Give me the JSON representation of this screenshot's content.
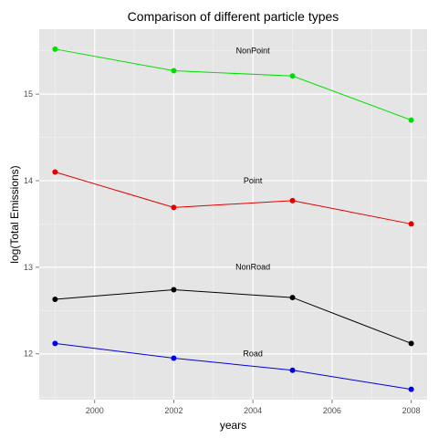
{
  "chart_data": {
    "type": "line",
    "title": "Comparison of different particle types",
    "xlabel": "years",
    "ylabel": "log(Total Emissions)",
    "x": [
      1999,
      2002,
      2005,
      2008
    ],
    "xlim": [
      1998.6,
      2008.4
    ],
    "ylim": [
      11.47,
      15.75
    ],
    "xticks": [
      2000,
      2002,
      2004,
      2006,
      2008
    ],
    "yticks": [
      12,
      13,
      14,
      15
    ],
    "grid": true,
    "background": "#e5e5e5",
    "series": [
      {
        "name": "NonPoint",
        "values": [
          15.52,
          15.27,
          15.21,
          14.7
        ],
        "color": "#00e000",
        "label_at": [
          2004,
          15.47
        ]
      },
      {
        "name": "Point",
        "values": [
          14.1,
          13.69,
          13.77,
          13.5
        ],
        "color": "#e00000",
        "label_at": [
          2004,
          13.97
        ]
      },
      {
        "name": "NonRoad",
        "values": [
          12.63,
          12.74,
          12.65,
          12.12
        ],
        "color": "#000000",
        "label_at": [
          2004,
          12.97
        ]
      },
      {
        "name": "Road",
        "values": [
          12.12,
          11.95,
          11.81,
          11.59
        ],
        "color": "#0000e0",
        "label_at": [
          2004,
          11.97
        ]
      }
    ]
  }
}
